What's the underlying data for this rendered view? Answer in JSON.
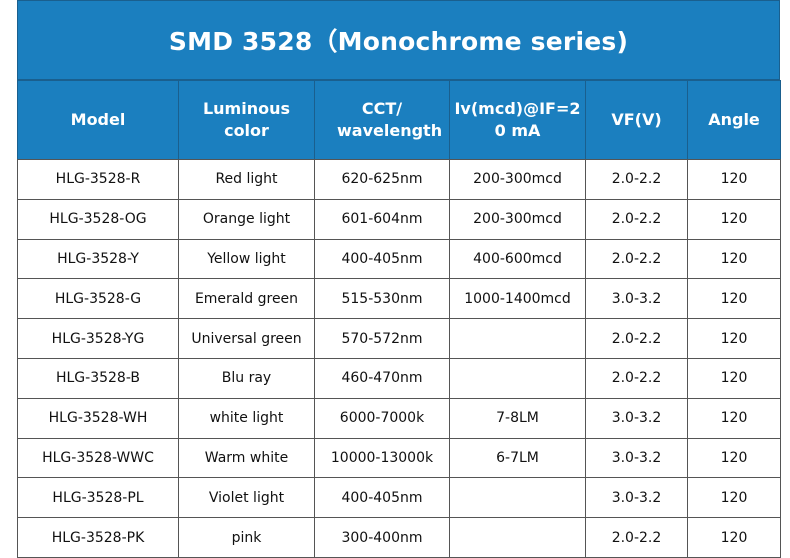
{
  "title": "SMD 3528（Monochrome series)",
  "colors": {
    "header_bg": "#1b7fbf",
    "header_text": "#ffffff",
    "grid_line": "#555555"
  },
  "table": {
    "headers": [
      {
        "key": "model",
        "label": "Model"
      },
      {
        "key": "color",
        "label": "Luminous color"
      },
      {
        "key": "cct",
        "label": "CCT/ wavelength"
      },
      {
        "key": "iv",
        "label": "Iv(mcd)@IF=20 mA"
      },
      {
        "key": "vf",
        "label": "VF(V)"
      },
      {
        "key": "angle",
        "label": "Angle"
      }
    ],
    "rows": [
      [
        "HLG-3528-R",
        "Red light",
        "620-625nm",
        "200-300mcd",
        "2.0-2.2",
        "120"
      ],
      [
        "HLG-3528-OG",
        "Orange light",
        "601-604nm",
        "200-300mcd",
        "2.0-2.2",
        "120"
      ],
      [
        "HLG-3528-Y",
        "Yellow light",
        "400-405nm",
        "400-600mcd",
        "2.0-2.2",
        "120"
      ],
      [
        "HLG-3528-G",
        "Emerald green",
        "515-530nm",
        "1000-1400mcd",
        "3.0-3.2",
        "120"
      ],
      [
        "HLG-3528-YG",
        "Universal green",
        "570-572nm",
        "",
        "2.0-2.2",
        "120"
      ],
      [
        "HLG-3528-B",
        "Blu ray",
        "460-470nm",
        "",
        "2.0-2.2",
        "120"
      ],
      [
        "HLG-3528-WH",
        "white light",
        "6000-7000k",
        "7-8LM",
        "3.0-3.2",
        "120"
      ],
      [
        "HLG-3528-WWC",
        "Warm white",
        "10000-13000k",
        "6-7LM",
        "3.0-3.2",
        "120"
      ],
      [
        "HLG-3528-PL",
        "Violet light",
        "400-405nm",
        "",
        "3.0-3.2",
        "120"
      ],
      [
        "HLG-3528-PK",
        "pink",
        "300-400nm",
        "",
        "2.0-2.2",
        "120"
      ]
    ]
  }
}
